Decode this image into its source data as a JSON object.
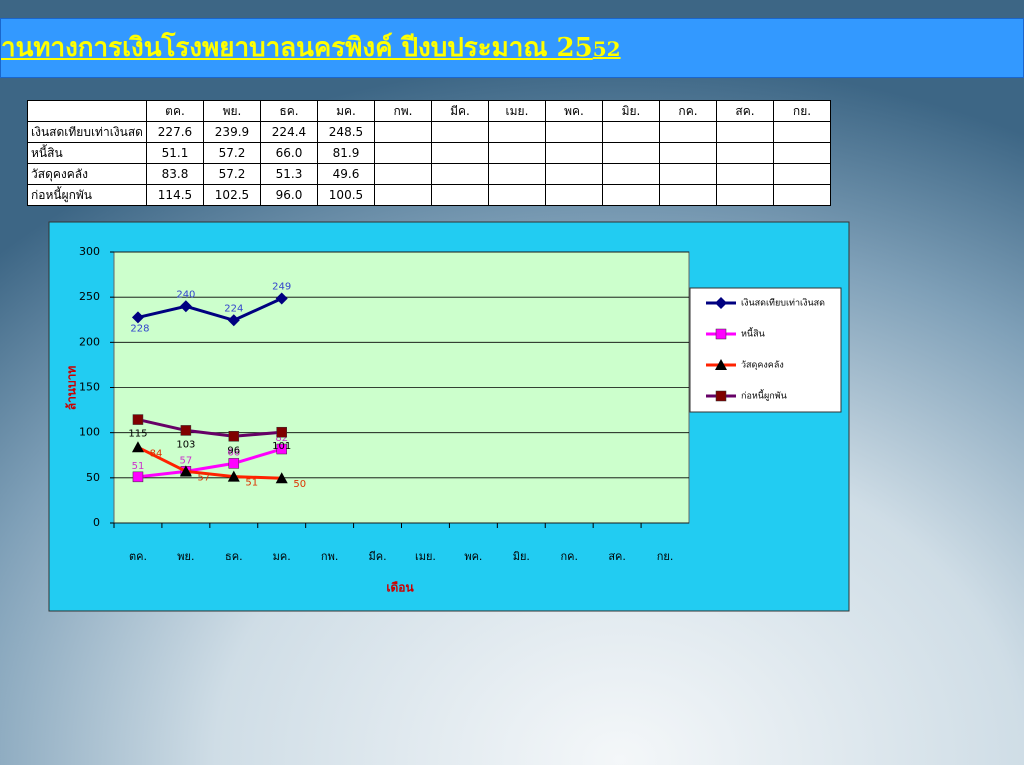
{
  "header": {
    "title_main": "านทางการเงินโรงพยาบาลนครพิงค์ ปีงบประมาณ 25",
    "title_suffix": "52"
  },
  "table": {
    "columns": [
      "ตค.",
      "พย.",
      "ธค.",
      "มค.",
      "กพ.",
      "มีค.",
      "เมย.",
      "พค.",
      "มิย.",
      "กค.",
      "สค.",
      "กย."
    ],
    "rows": [
      [
        "เงินสดเทียบเท่าเงินสด",
        "227.6",
        "239.9",
        "224.4",
        "248.5"
      ],
      [
        "หนี้สิน",
        "51.1",
        "57.2",
        "66.0",
        "81.9"
      ],
      [
        "วัสดุคงคลัง",
        "83.8",
        "57.2",
        "51.3",
        "49.6"
      ],
      [
        "ก่อหนี้ผูกพัน",
        "114.5",
        "102.5",
        "96.0",
        "100.5"
      ]
    ]
  },
  "chart_data": {
    "type": "line",
    "x_label": "เดือน",
    "y_label": "ล้านบาท",
    "categories": [
      "ตค.",
      "พย.",
      "ธค.",
      "มค.",
      "กพ.",
      "มีค.",
      "เมย.",
      "พค.",
      "มิย.",
      "กค.",
      "สค.",
      "กย."
    ],
    "ylim": [
      0,
      300
    ],
    "yticks": [
      0,
      50,
      100,
      150,
      200,
      250,
      300
    ],
    "grid": true,
    "legend": "right",
    "series": [
      {
        "name": "เงินสดเทียบเท่าเงินสด",
        "color": "#000080",
        "marker": "diamond",
        "marker_color": "#000080",
        "label_color": "#3344cc",
        "values": [
          227.6,
          239.9,
          224.4,
          248.5,
          null,
          null,
          null,
          null,
          null,
          null,
          null,
          null
        ],
        "value_labels": [
          "228",
          "240",
          "224",
          "249",
          null,
          null,
          null,
          null,
          null,
          null,
          null,
          null
        ]
      },
      {
        "name": "หนี้สิน",
        "color": "#ff00ff",
        "marker": "square",
        "marker_color": "#ff00ff",
        "label_color": "#cc33cc",
        "values": [
          51.1,
          57.2,
          66.0,
          81.9,
          null,
          null,
          null,
          null,
          null,
          null,
          null,
          null
        ],
        "value_labels": [
          "51",
          "57",
          "66",
          "82",
          null,
          null,
          null,
          null,
          null,
          null,
          null,
          null
        ]
      },
      {
        "name": "วัสดุคงคลัง",
        "color": "#ff2200",
        "marker": "triangle",
        "marker_color": "#000000",
        "label_color": "#dd3300",
        "values": [
          83.8,
          57.2,
          51.3,
          49.6,
          null,
          null,
          null,
          null,
          null,
          null,
          null,
          null
        ],
        "value_labels": [
          "84",
          "57",
          "51",
          "50",
          null,
          null,
          null,
          null,
          null,
          null,
          null,
          null
        ]
      },
      {
        "name": "ก่อหนี้ผูกพัน",
        "color": "#660066",
        "marker": "square",
        "marker_color": "#800000",
        "label_color": "#000000",
        "values": [
          114.5,
          102.5,
          96.0,
          100.5,
          null,
          null,
          null,
          null,
          null,
          null,
          null,
          null
        ],
        "value_labels": [
          "115",
          "103",
          "96",
          "101",
          null,
          null,
          null,
          null,
          null,
          null,
          null,
          null
        ]
      }
    ]
  }
}
